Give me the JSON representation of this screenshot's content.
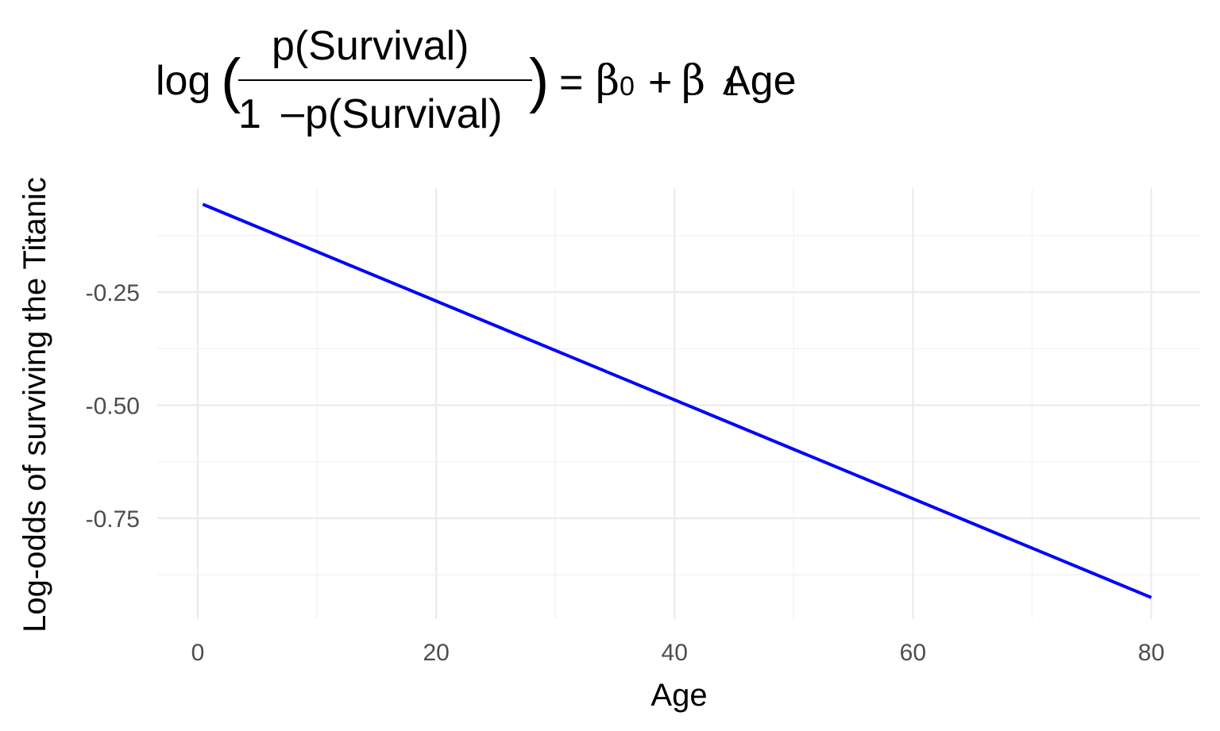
{
  "chart_data": {
    "type": "line",
    "title": {
      "log": "log",
      "numerator": "p(Survival)",
      "denominator_one": "1",
      "denominator_minus": "–",
      "denominator_p": "p(Survival)",
      "equals": "=",
      "beta": "β",
      "sub0": "0",
      "plus": "+",
      "sub1": "1",
      "age": "Age"
    },
    "xlabel": "Age",
    "ylabel": "Log-odds of surviving the Titanic",
    "xlim": [
      -3.4,
      84.1
    ],
    "ylim": [
      -0.973,
      -0.02
    ],
    "x_ticks": [
      0,
      20,
      40,
      60,
      80
    ],
    "x_tick_labels": [
      "0",
      "20",
      "40",
      "60",
      "80"
    ],
    "x_minor": [
      10,
      30,
      50,
      70
    ],
    "y_ticks": [
      -0.25,
      -0.5,
      -0.75
    ],
    "y_tick_labels": [
      "-0.25",
      "-0.50",
      "-0.75"
    ],
    "y_minor": [
      -0.125,
      -0.375,
      -0.625,
      -0.875
    ],
    "grid": true,
    "series": [
      {
        "color": "#0000ff",
        "x": [
          0.42,
          80
        ],
        "y": [
          -0.0558,
          -0.9253
        ]
      }
    ]
  },
  "colors": {
    "line": "#0000ff",
    "grid_major": "#ebebeb",
    "grid_minor": "#f3f3f3",
    "tick_text": "#4d4d4d"
  }
}
